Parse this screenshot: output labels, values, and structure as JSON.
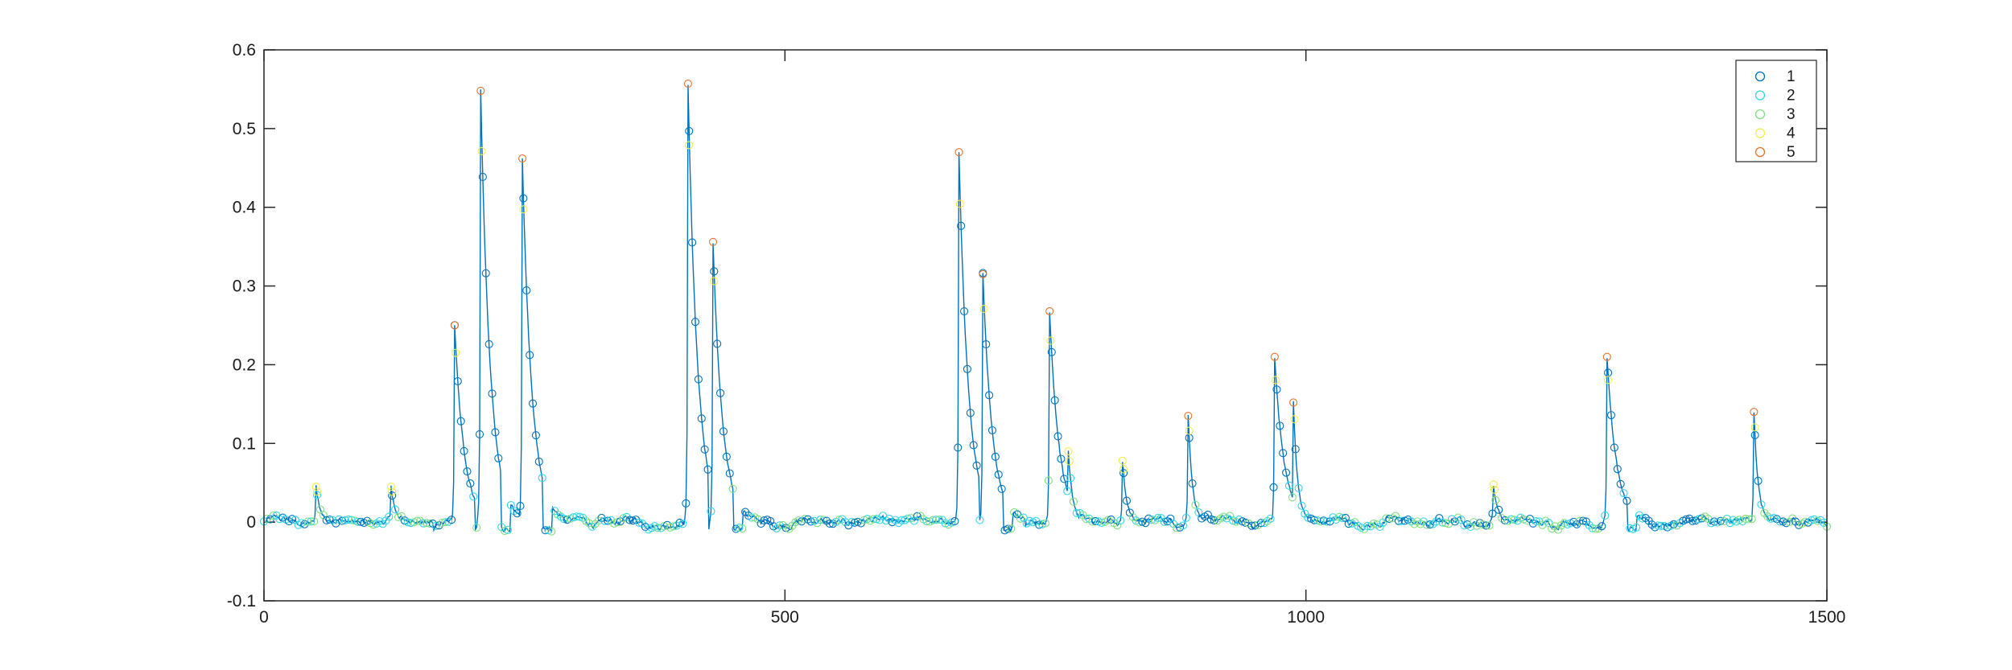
{
  "chart_data": {
    "type": "line",
    "title": "",
    "xlabel": "",
    "ylabel": "",
    "xlim": [
      0,
      1500
    ],
    "ylim": [
      -0.1,
      0.6
    ],
    "xticks": [
      0,
      500,
      1000,
      1500
    ],
    "yticks": [
      -0.1,
      0,
      0.1,
      0.2,
      0.3,
      0.4,
      0.5,
      0.6
    ],
    "xtick_labels": [
      "0",
      "500",
      "1000",
      "1500"
    ],
    "ytick_labels": [
      "-0.1",
      "0",
      "0.1",
      "0.2",
      "0.3",
      "0.4",
      "0.5",
      "0.6"
    ],
    "line_color": "#0072bd",
    "legend": {
      "location": "top-right",
      "entries": [
        {
          "label": "1",
          "color": "#0072bd"
        },
        {
          "label": "2",
          "color": "#33d6e8"
        },
        {
          "label": "3",
          "color": "#7fe07f"
        },
        {
          "label": "4",
          "color": "#f2ec4e"
        },
        {
          "label": "5",
          "color": "#e8732a"
        }
      ]
    },
    "peaks": [
      {
        "x": 50,
        "y": 0.045
      },
      {
        "x": 122,
        "y": 0.045
      },
      {
        "x": 183,
        "y": 0.25
      },
      {
        "x": 208,
        "y": 0.548
      },
      {
        "x": 248,
        "y": 0.462
      },
      {
        "x": 407,
        "y": 0.557
      },
      {
        "x": 431,
        "y": 0.356
      },
      {
        "x": 667,
        "y": 0.47
      },
      {
        "x": 690,
        "y": 0.315
      },
      {
        "x": 754,
        "y": 0.268
      },
      {
        "x": 772,
        "y": 0.09
      },
      {
        "x": 824,
        "y": 0.078
      },
      {
        "x": 887,
        "y": 0.135
      },
      {
        "x": 970,
        "y": 0.21
      },
      {
        "x": 988,
        "y": 0.152
      },
      {
        "x": 1180,
        "y": 0.048
      },
      {
        "x": 1289,
        "y": 0.21
      },
      {
        "x": 1430,
        "y": 0.14
      }
    ],
    "series": [
      {
        "name": "1",
        "color": "#0072bd",
        "marker": "circle"
      },
      {
        "name": "2",
        "color": "#33d6e8",
        "marker": "circle"
      },
      {
        "name": "3",
        "color": "#7fe07f",
        "marker": "circle"
      },
      {
        "name": "4",
        "color": "#f2ec4e",
        "marker": "circle"
      },
      {
        "name": "5",
        "color": "#e8732a",
        "marker": "circle"
      }
    ]
  }
}
